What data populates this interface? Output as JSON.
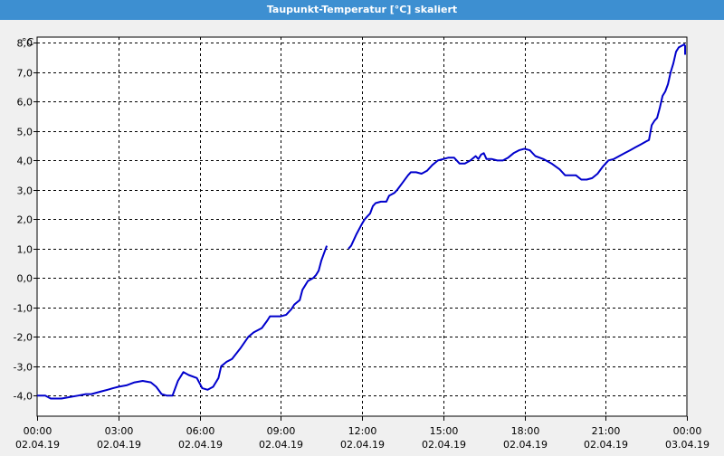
{
  "window": {
    "title": "Taupunkt-Temperatur [°C] skaliert"
  },
  "colors": {
    "titlebar": "#3d8fd1",
    "series": "#0000cc",
    "grid": "#000000",
    "plot_bg": "#ffffff"
  },
  "chart_data": {
    "type": "line",
    "title": "Taupunkt-Temperatur [°C] skaliert",
    "ylabel": "°C",
    "xlabel": "",
    "ylim": [
      -4.7,
      8.2
    ],
    "xlim_hours": [
      0,
      24
    ],
    "grid": true,
    "y_ticks": [
      {
        "value": 8,
        "label": "8,0"
      },
      {
        "value": 7,
        "label": "7,0"
      },
      {
        "value": 6,
        "label": "6,0"
      },
      {
        "value": 5,
        "label": "5,0"
      },
      {
        "value": 4,
        "label": "4,0"
      },
      {
        "value": 3,
        "label": "3,0"
      },
      {
        "value": 2,
        "label": "2,0"
      },
      {
        "value": 1,
        "label": "1,0"
      },
      {
        "value": 0,
        "label": "0,0"
      },
      {
        "value": -1,
        "label": "-1,0"
      },
      {
        "value": -2,
        "label": "-2,0"
      },
      {
        "value": -3,
        "label": "-3,0"
      },
      {
        "value": -4,
        "label": "-4,0"
      }
    ],
    "x_ticks": [
      {
        "hour": 0,
        "time": "00:00",
        "date": "02.04.19"
      },
      {
        "hour": 3,
        "time": "03:00",
        "date": "02.04.19"
      },
      {
        "hour": 6,
        "time": "06:00",
        "date": "02.04.19"
      },
      {
        "hour": 9,
        "time": "09:00",
        "date": "02.04.19"
      },
      {
        "hour": 12,
        "time": "12:00",
        "date": "02.04.19"
      },
      {
        "hour": 15,
        "time": "15:00",
        "date": "02.04.19"
      },
      {
        "hour": 18,
        "time": "18:00",
        "date": "02.04.19"
      },
      {
        "hour": 21,
        "time": "21:00",
        "date": "02.04.19"
      },
      {
        "hour": 24,
        "time": "00:00",
        "date": "03.04.19"
      }
    ],
    "series": [
      {
        "segments": [
          [
            [
              0.0,
              -4.0
            ],
            [
              0.3,
              -4.0
            ],
            [
              0.5,
              -4.1
            ],
            [
              0.9,
              -4.1
            ],
            [
              1.2,
              -4.05
            ],
            [
              1.5,
              -4.0
            ],
            [
              1.8,
              -3.95
            ],
            [
              2.0,
              -3.95
            ],
            [
              2.2,
              -3.9
            ],
            [
              2.4,
              -3.85
            ],
            [
              2.6,
              -3.8
            ],
            [
              2.8,
              -3.75
            ],
            [
              3.0,
              -3.7
            ],
            [
              3.3,
              -3.65
            ],
            [
              3.6,
              -3.55
            ],
            [
              3.9,
              -3.5
            ],
            [
              4.2,
              -3.55
            ],
            [
              4.4,
              -3.7
            ],
            [
              4.6,
              -3.95
            ],
            [
              4.8,
              -4.0
            ],
            [
              5.0,
              -4.0
            ],
            [
              5.2,
              -3.5
            ],
            [
              5.4,
              -3.2
            ],
            [
              5.6,
              -3.3
            ],
            [
              5.9,
              -3.4
            ],
            [
              6.1,
              -3.75
            ],
            [
              6.3,
              -3.8
            ],
            [
              6.5,
              -3.7
            ],
            [
              6.7,
              -3.4
            ],
            [
              6.8,
              -3.0
            ],
            [
              7.0,
              -2.85
            ],
            [
              7.2,
              -2.75
            ],
            [
              7.5,
              -2.4
            ],
            [
              7.8,
              -2.0
            ],
            [
              8.0,
              -1.85
            ],
            [
              8.3,
              -1.7
            ],
            [
              8.5,
              -1.45
            ],
            [
              8.6,
              -1.3
            ],
            [
              8.8,
              -1.3
            ],
            [
              9.0,
              -1.3
            ],
            [
              9.2,
              -1.25
            ],
            [
              9.4,
              -1.05
            ],
            [
              9.5,
              -0.9
            ],
            [
              9.7,
              -0.75
            ],
            [
              9.8,
              -0.4
            ],
            [
              10.0,
              -0.1
            ],
            [
              10.2,
              0.0
            ],
            [
              10.3,
              0.1
            ],
            [
              10.4,
              0.25
            ],
            [
              10.5,
              0.6
            ],
            [
              10.6,
              0.85
            ],
            [
              10.7,
              1.1
            ]
          ],
          [
            [
              11.5,
              1.0
            ],
            [
              11.6,
              1.1
            ],
            [
              11.7,
              1.3
            ],
            [
              11.8,
              1.5
            ],
            [
              12.0,
              1.85
            ],
            [
              12.1,
              2.0
            ],
            [
              12.2,
              2.1
            ],
            [
              12.3,
              2.2
            ],
            [
              12.4,
              2.45
            ],
            [
              12.5,
              2.55
            ],
            [
              12.7,
              2.6
            ],
            [
              12.9,
              2.6
            ],
            [
              13.0,
              2.8
            ],
            [
              13.2,
              2.9
            ],
            [
              13.3,
              3.0
            ],
            [
              13.5,
              3.25
            ],
            [
              13.7,
              3.5
            ],
            [
              13.8,
              3.6
            ],
            [
              14.0,
              3.6
            ],
            [
              14.2,
              3.55
            ],
            [
              14.4,
              3.65
            ],
            [
              14.6,
              3.85
            ],
            [
              14.8,
              4.0
            ],
            [
              15.0,
              4.05
            ],
            [
              15.2,
              4.1
            ],
            [
              15.4,
              4.1
            ],
            [
              15.6,
              3.9
            ],
            [
              15.8,
              3.9
            ],
            [
              16.0,
              4.0
            ],
            [
              16.2,
              4.15
            ],
            [
              16.3,
              4.05
            ],
            [
              16.4,
              4.2
            ],
            [
              16.5,
              4.25
            ],
            [
              16.6,
              4.05
            ],
            [
              16.8,
              4.05
            ],
            [
              17.0,
              4.0
            ],
            [
              17.2,
              4.0
            ],
            [
              17.4,
              4.1
            ],
            [
              17.6,
              4.25
            ],
            [
              17.8,
              4.35
            ],
            [
              18.0,
              4.4
            ],
            [
              18.2,
              4.35
            ],
            [
              18.4,
              4.15
            ],
            [
              18.7,
              4.05
            ],
            [
              19.0,
              3.9
            ],
            [
              19.3,
              3.7
            ],
            [
              19.5,
              3.5
            ],
            [
              19.7,
              3.5
            ],
            [
              19.9,
              3.5
            ],
            [
              20.1,
              3.35
            ],
            [
              20.3,
              3.35
            ],
            [
              20.5,
              3.4
            ],
            [
              20.7,
              3.55
            ],
            [
              20.9,
              3.8
            ],
            [
              21.1,
              4.0
            ],
            [
              21.3,
              4.05
            ],
            [
              21.5,
              4.15
            ],
            [
              21.7,
              4.25
            ],
            [
              21.9,
              4.35
            ],
            [
              22.1,
              4.45
            ],
            [
              22.3,
              4.55
            ],
            [
              22.5,
              4.65
            ],
            [
              22.6,
              4.7
            ],
            [
              22.7,
              5.2
            ],
            [
              22.8,
              5.35
            ],
            [
              22.9,
              5.45
            ],
            [
              23.0,
              5.8
            ],
            [
              23.1,
              6.2
            ],
            [
              23.2,
              6.35
            ],
            [
              23.3,
              6.6
            ],
            [
              23.4,
              7.0
            ],
            [
              23.5,
              7.3
            ],
            [
              23.6,
              7.7
            ],
            [
              23.7,
              7.85
            ],
            [
              23.8,
              7.9
            ],
            [
              23.9,
              7.95
            ],
            [
              24.0,
              7.9
            ],
            [
              24.1,
              7.8
            ],
            [
              24.2,
              7.75
            ],
            [
              24.3,
              7.7
            ],
            [
              24.4,
              7.7
            ],
            [
              24.5,
              7.6
            ]
          ]
        ]
      }
    ]
  }
}
